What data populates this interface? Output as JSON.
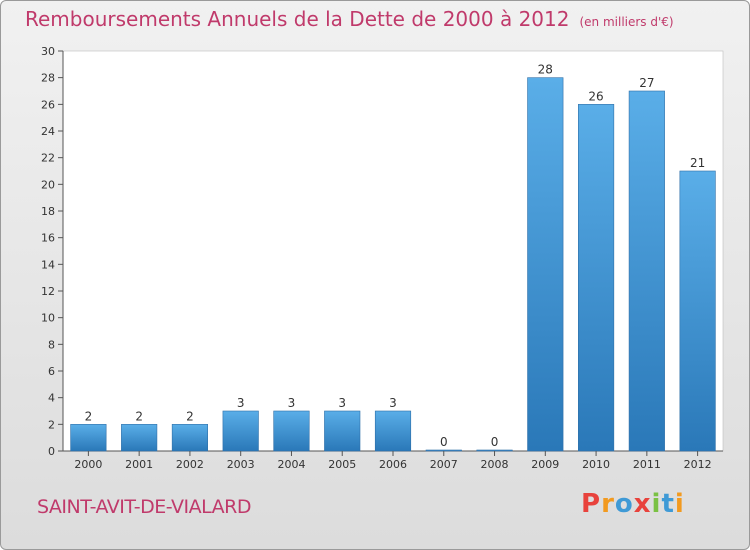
{
  "header": {
    "title": "Remboursements Annuels de la Dette de 2000 à 2012",
    "subtitle": "(en milliers d'€)"
  },
  "footer": {
    "commune": "SAINT-AVIT-DE-VIALARD",
    "brand": "Proxiti"
  },
  "colors": {
    "title": "#c03a6b",
    "bar_top": "#5aaee8",
    "bar_bottom": "#2a78b8",
    "logo": [
      "#e8423c",
      "#f29a1f",
      "#3f9ad6",
      "#e8423c",
      "#7ac143",
      "#3f9ad6",
      "#f29a1f"
    ]
  },
  "chart_data": {
    "type": "bar",
    "title": "Remboursements Annuels de la Dette de 2000 à 2012",
    "subtitle": "(en milliers d'€)",
    "categories": [
      "2000",
      "2001",
      "2002",
      "2003",
      "2004",
      "2005",
      "2006",
      "2007",
      "2008",
      "2009",
      "2010",
      "2011",
      "2012"
    ],
    "values": [
      2,
      2,
      2,
      3,
      3,
      3,
      3,
      0,
      0,
      28,
      26,
      27,
      21
    ],
    "value_labels": [
      "2",
      "2",
      "2",
      "3",
      "3",
      "3",
      "3",
      "0",
      "0",
      "28",
      "26",
      "27",
      "21"
    ],
    "ylim": [
      0,
      30
    ],
    "yticks": [
      0,
      2,
      4,
      6,
      8,
      10,
      12,
      14,
      16,
      18,
      20,
      22,
      24,
      26,
      28,
      30
    ],
    "grid": false,
    "legend": "none"
  }
}
